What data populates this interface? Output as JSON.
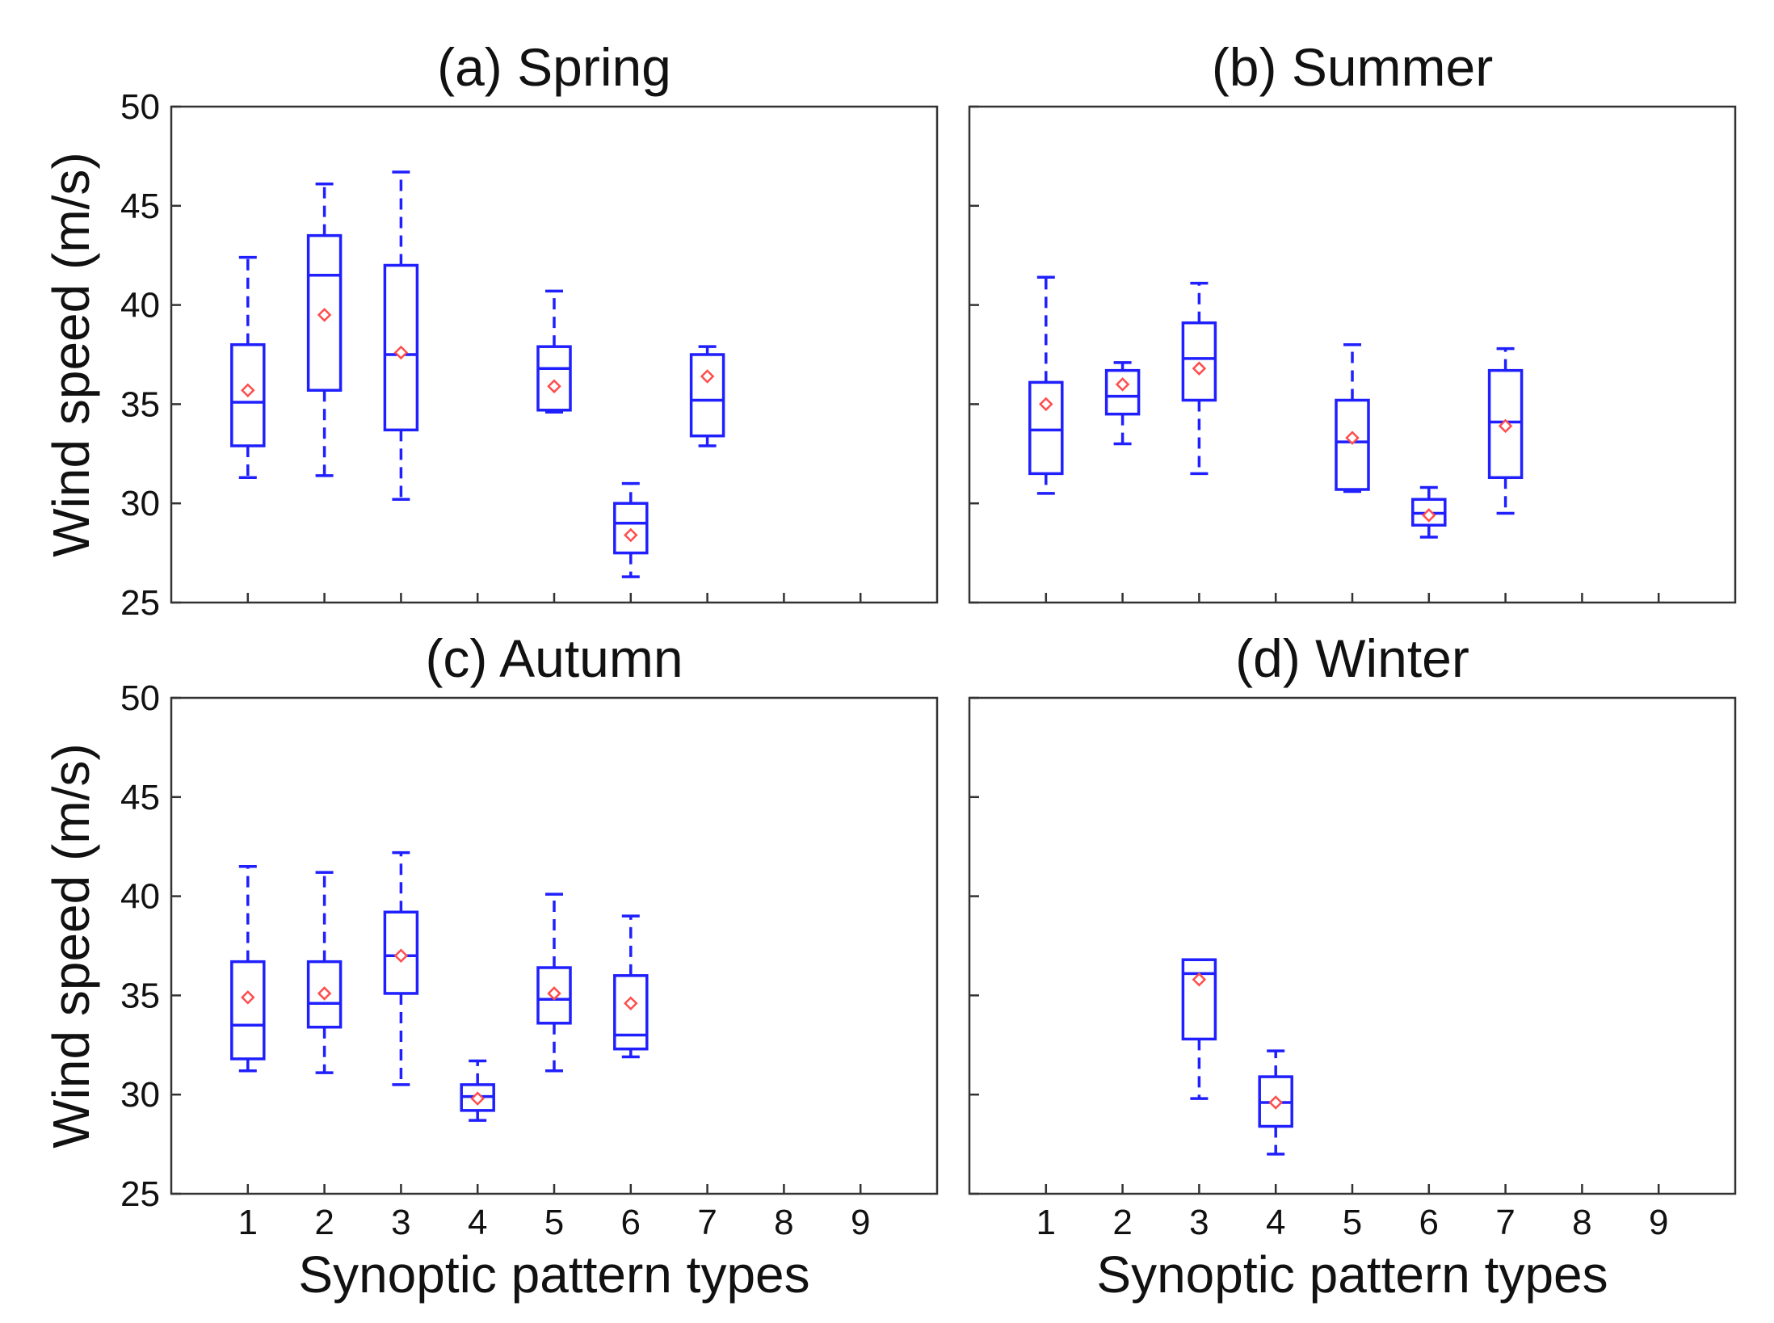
{
  "figure": {
    "y_axis_label": "Wind speed (m/s)",
    "x_axis_label": "Synoptic pattern types"
  },
  "colors": {
    "box": "#1f1fff",
    "mean": "#ff4d4d"
  },
  "chart_data": [
    {
      "type": "boxplot",
      "title": "(a) Spring",
      "ylim": [
        25,
        50
      ],
      "yticks": [
        "25",
        "30",
        "35",
        "40",
        "45",
        "50"
      ],
      "xticks": [
        "1",
        "2",
        "3",
        "4",
        "5",
        "6",
        "7",
        "8",
        "9"
      ],
      "show_y_tick_labels": true,
      "show_x_tick_labels": false,
      "show_y_label": true,
      "show_x_label": false,
      "boxes": [
        {
          "type": 1,
          "whisker_low": 31.3,
          "q1": 32.9,
          "median": 35.1,
          "q3": 38.0,
          "whisker_high": 42.4,
          "mean": 35.7
        },
        {
          "type": 2,
          "whisker_low": 31.4,
          "q1": 35.7,
          "median": 41.5,
          "q3": 43.5,
          "whisker_high": 46.1,
          "mean": 39.5
        },
        {
          "type": 3,
          "whisker_low": 30.2,
          "q1": 33.7,
          "median": 37.5,
          "q3": 42.0,
          "whisker_high": 46.7,
          "mean": 37.6
        },
        {
          "type": 5,
          "whisker_low": 34.6,
          "q1": 34.7,
          "median": 36.8,
          "q3": 37.9,
          "whisker_high": 40.7,
          "mean": 35.9
        },
        {
          "type": 6,
          "whisker_low": 26.3,
          "q1": 27.5,
          "median": 29.0,
          "q3": 30.0,
          "whisker_high": 31.0,
          "mean": 28.4
        },
        {
          "type": 7,
          "whisker_low": 32.9,
          "q1": 33.4,
          "median": 35.2,
          "q3": 37.5,
          "whisker_high": 37.9,
          "mean": 36.4
        }
      ]
    },
    {
      "type": "boxplot",
      "title": "(b) Summer",
      "ylim": [
        25,
        50
      ],
      "yticks": [
        "25",
        "30",
        "35",
        "40",
        "45",
        "50"
      ],
      "xticks": [
        "1",
        "2",
        "3",
        "4",
        "5",
        "6",
        "7",
        "8",
        "9"
      ],
      "show_y_tick_labels": false,
      "show_x_tick_labels": false,
      "show_y_label": false,
      "show_x_label": false,
      "boxes": [
        {
          "type": 1,
          "whisker_low": 30.5,
          "q1": 31.5,
          "median": 33.7,
          "q3": 36.1,
          "whisker_high": 41.4,
          "mean": 35.0
        },
        {
          "type": 2,
          "whisker_low": 33.0,
          "q1": 34.5,
          "median": 35.4,
          "q3": 36.7,
          "whisker_high": 37.1,
          "mean": 36.0
        },
        {
          "type": 3,
          "whisker_low": 31.5,
          "q1": 35.2,
          "median": 37.3,
          "q3": 39.1,
          "whisker_high": 41.1,
          "mean": 36.8
        },
        {
          "type": 5,
          "whisker_low": 30.6,
          "q1": 30.7,
          "median": 33.1,
          "q3": 35.2,
          "whisker_high": 38.0,
          "mean": 33.3
        },
        {
          "type": 6,
          "whisker_low": 28.3,
          "q1": 28.9,
          "median": 29.5,
          "q3": 30.2,
          "whisker_high": 30.8,
          "mean": 29.4
        },
        {
          "type": 7,
          "whisker_low": 29.5,
          "q1": 31.3,
          "median": 34.1,
          "q3": 36.7,
          "whisker_high": 37.8,
          "mean": 33.9
        }
      ]
    },
    {
      "type": "boxplot",
      "title": "(c) Autumn",
      "ylim": [
        25,
        50
      ],
      "yticks": [
        "25",
        "30",
        "35",
        "40",
        "45",
        "50"
      ],
      "xticks": [
        "1",
        "2",
        "3",
        "4",
        "5",
        "6",
        "7",
        "8",
        "9"
      ],
      "show_y_tick_labels": true,
      "show_x_tick_labels": true,
      "show_y_label": true,
      "show_x_label": true,
      "boxes": [
        {
          "type": 1,
          "whisker_low": 31.2,
          "q1": 31.8,
          "median": 33.5,
          "q3": 36.7,
          "whisker_high": 41.5,
          "mean": 34.9
        },
        {
          "type": 2,
          "whisker_low": 31.1,
          "q1": 33.4,
          "median": 34.6,
          "q3": 36.7,
          "whisker_high": 41.2,
          "mean": 35.1
        },
        {
          "type": 3,
          "whisker_low": 30.5,
          "q1": 35.1,
          "median": 37.0,
          "q3": 39.2,
          "whisker_high": 42.2,
          "mean": 37.0
        },
        {
          "type": 4,
          "whisker_low": 28.7,
          "q1": 29.2,
          "median": 29.9,
          "q3": 30.5,
          "whisker_high": 31.7,
          "mean": 29.8
        },
        {
          "type": 5,
          "whisker_low": 31.2,
          "q1": 33.6,
          "median": 34.8,
          "q3": 36.4,
          "whisker_high": 40.1,
          "mean": 35.1
        },
        {
          "type": 6,
          "whisker_low": 31.9,
          "q1": 32.3,
          "median": 33.0,
          "q3": 36.0,
          "whisker_high": 39.0,
          "mean": 34.6
        }
      ]
    },
    {
      "type": "boxplot",
      "title": "(d) Winter",
      "ylim": [
        25,
        50
      ],
      "yticks": [
        "25",
        "30",
        "35",
        "40",
        "45",
        "50"
      ],
      "xticks": [
        "1",
        "2",
        "3",
        "4",
        "5",
        "6",
        "7",
        "8",
        "9"
      ],
      "show_y_tick_labels": false,
      "show_x_tick_labels": true,
      "show_y_label": false,
      "show_x_label": true,
      "boxes": [
        {
          "type": 3,
          "whisker_low": 29.8,
          "q1": 32.8,
          "median": 36.1,
          "q3": 36.8,
          "whisker_high": 36.8,
          "mean": 35.8
        },
        {
          "type": 4,
          "whisker_low": 27.0,
          "q1": 28.4,
          "median": 29.6,
          "q3": 30.9,
          "whisker_high": 32.2,
          "mean": 29.6
        }
      ]
    }
  ]
}
